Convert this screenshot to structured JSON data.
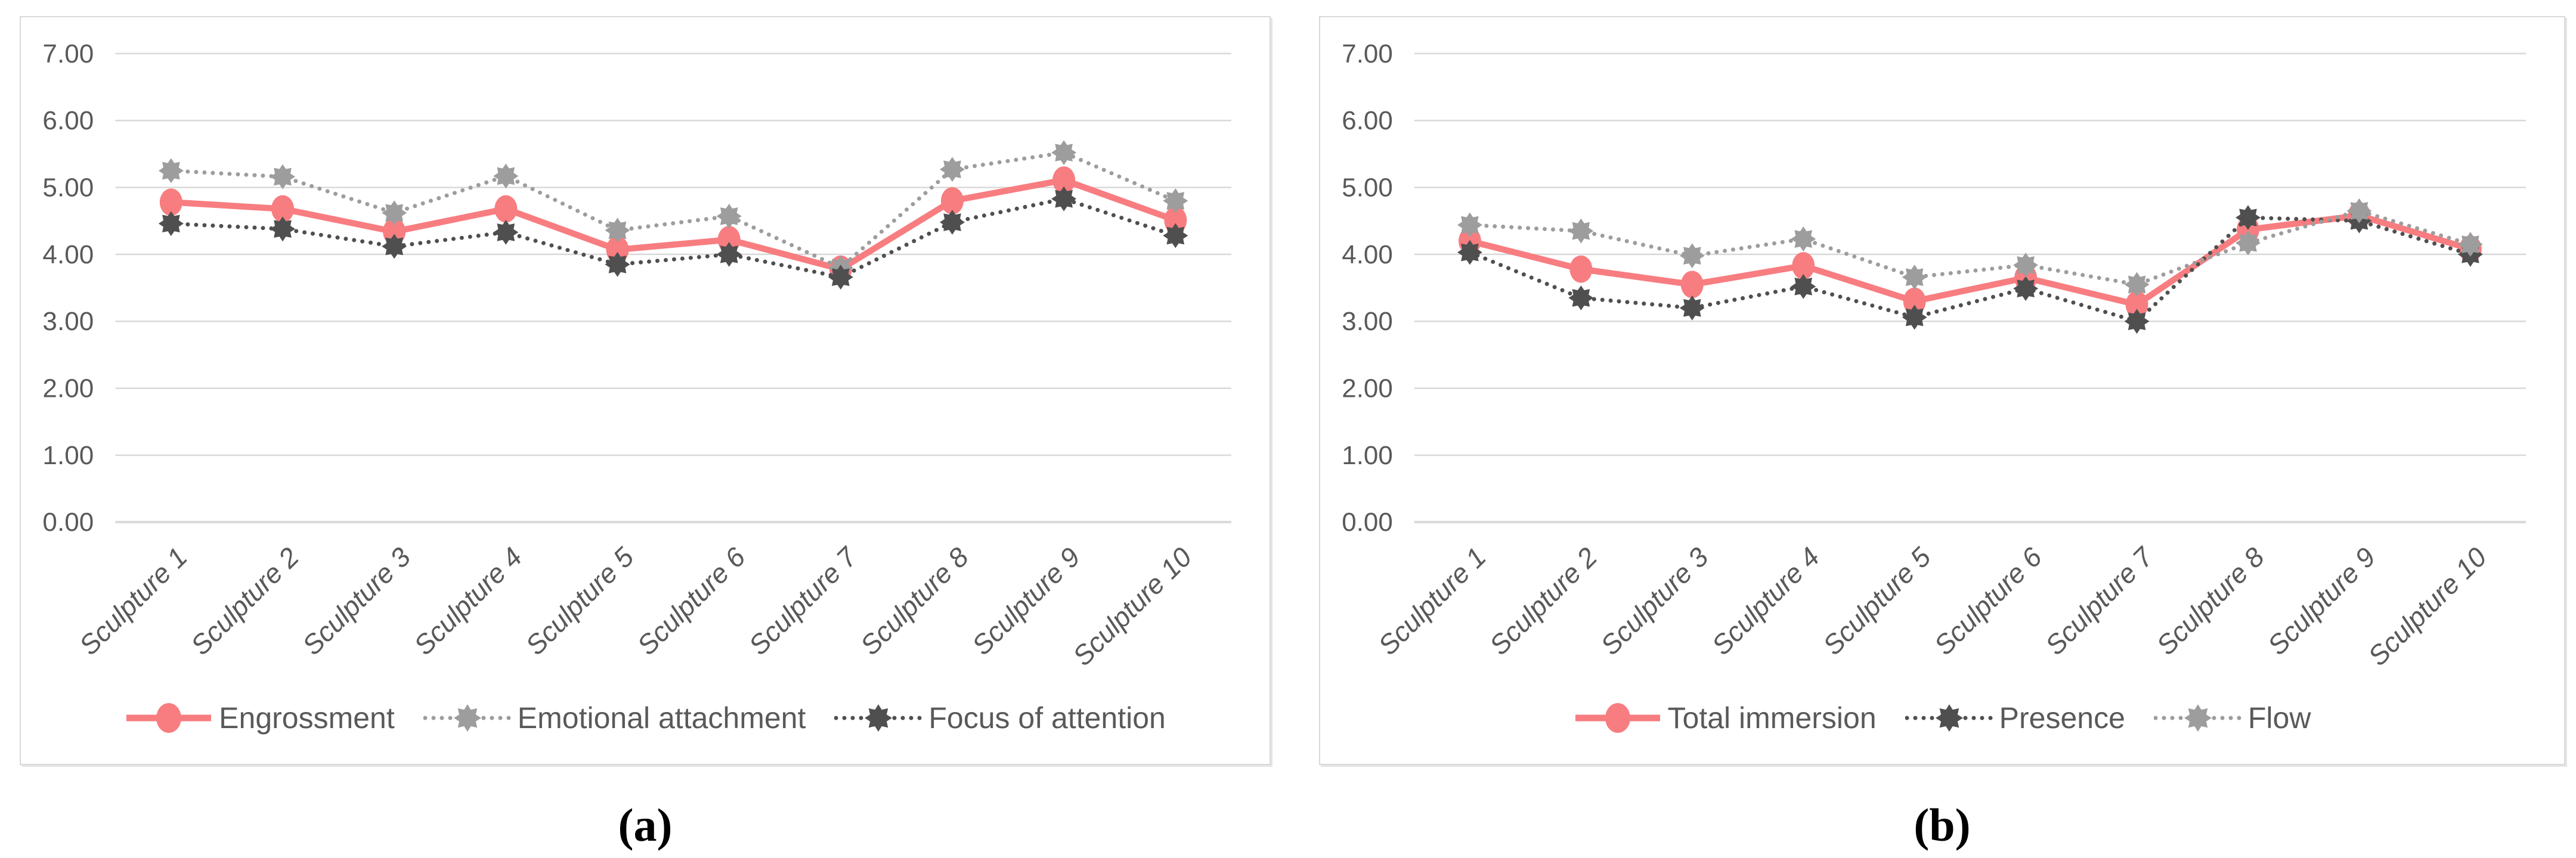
{
  "figure": {
    "background": "#ffffff",
    "captions": {
      "a": "(a)",
      "b": "(b)"
    }
  },
  "colors": {
    "accent_red": "#f87d80",
    "series_gray": "#9d9d9d",
    "series_dark": "#4f4f4f",
    "gridline": "#d9d9d9",
    "axis_text": "#595959",
    "caption_text": "#000000",
    "panel_border": "#d9d9d9"
  },
  "chart_data": [
    {
      "id": "a",
      "type": "line",
      "title": "",
      "caption": "(a)",
      "xlabel": "",
      "ylabel": "",
      "ylim": [
        0,
        7
      ],
      "ytick_step": 1,
      "ytick_labels": [
        "7.00",
        "6.00",
        "5.00",
        "4.00",
        "3.00",
        "2.00",
        "1.00",
        "0.00"
      ],
      "grid": true,
      "legend_position": "bottom",
      "categories": [
        "Sculpture 1",
        "Sculpture 2",
        "Sculpture 3",
        "Sculpture 4",
        "Sculpture 5",
        "Sculpture 6",
        "Sculpture 7",
        "Sculpture 8",
        "Sculpture 9",
        "Sculpture 10"
      ],
      "series": [
        {
          "name": "Engrossment",
          "color": "#f87d80",
          "line": "solid",
          "marker": "circle",
          "values": [
            4.78,
            4.68,
            4.34,
            4.68,
            4.07,
            4.22,
            3.78,
            4.8,
            5.11,
            4.51
          ]
        },
        {
          "name": "Emotional attachment",
          "color": "#9d9d9d",
          "line": "dotted",
          "marker": "star",
          "values": [
            5.25,
            5.16,
            4.62,
            5.17,
            4.36,
            4.57,
            3.8,
            5.27,
            5.52,
            4.8
          ]
        },
        {
          "name": "Focus of attention",
          "color": "#4f4f4f",
          "line": "dotted",
          "marker": "star",
          "values": [
            4.46,
            4.38,
            4.12,
            4.33,
            3.85,
            4.0,
            3.66,
            4.48,
            4.83,
            4.28
          ]
        }
      ]
    },
    {
      "id": "b",
      "type": "line",
      "title": "",
      "caption": "(b)",
      "xlabel": "",
      "ylabel": "",
      "ylim": [
        0,
        7
      ],
      "ytick_step": 1,
      "ytick_labels": [
        "7.00",
        "6.00",
        "5.00",
        "4.00",
        "3.00",
        "2.00",
        "1.00",
        "0.00"
      ],
      "grid": true,
      "legend_position": "bottom",
      "categories": [
        "Sculpture 1",
        "Sculpture 2",
        "Sculpture 3",
        "Sculpture 4",
        "Sculpture 5",
        "Sculpture 6",
        "Sculpture 7",
        "Sculpture 8",
        "Sculpture 9",
        "Sculpture 10"
      ],
      "series": [
        {
          "name": "Total immersion",
          "color": "#f87d80",
          "line": "solid",
          "marker": "circle",
          "values": [
            4.2,
            3.78,
            3.55,
            3.83,
            3.3,
            3.65,
            3.25,
            4.37,
            4.58,
            4.08
          ]
        },
        {
          "name": "Presence",
          "color": "#4f4f4f",
          "line": "dotted",
          "marker": "star",
          "values": [
            4.03,
            3.35,
            3.2,
            3.52,
            3.06,
            3.49,
            3.0,
            4.55,
            4.5,
            4.0
          ]
        },
        {
          "name": "Flow",
          "color": "#9d9d9d",
          "line": "dotted",
          "marker": "star",
          "values": [
            4.44,
            4.35,
            3.98,
            4.23,
            3.66,
            3.84,
            3.55,
            4.17,
            4.65,
            4.15
          ]
        }
      ]
    }
  ]
}
